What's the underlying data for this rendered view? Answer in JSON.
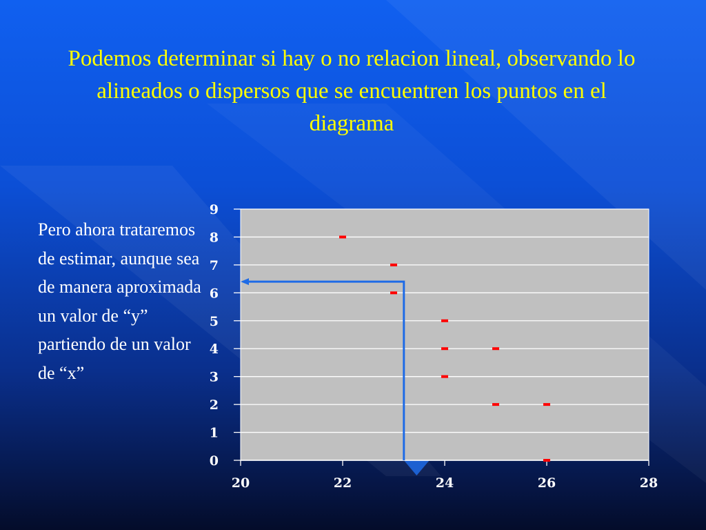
{
  "slide": {
    "title": "Podemos determinar si hay o no relacion lineal, observando lo alineados o dispersos que se encuentren los puntos en el diagrama",
    "body": "Pero ahora trataremos de estimar, aunque sea de manera aproximada un valor de “y” partiendo de un valor de “x”"
  },
  "colors": {
    "title": "#ffff00",
    "body": "#ffffff",
    "plot_background": "#c0c0c0",
    "gridline": "#ffffff",
    "marker": "#ff0000",
    "guide_arrow": "#1e6be6"
  },
  "chart_data": {
    "type": "scatter",
    "x": [
      22,
      23,
      23,
      24,
      24,
      24,
      25,
      25,
      26,
      26
    ],
    "y": [
      8,
      7,
      6,
      5,
      4,
      3,
      4,
      2,
      2,
      0
    ],
    "xlim": [
      20,
      28
    ],
    "ylim": [
      0,
      9
    ],
    "x_ticks": [
      20,
      22,
      24,
      26,
      28
    ],
    "y_ticks": [
      0,
      1,
      2,
      3,
      4,
      5,
      6,
      7,
      8,
      9
    ],
    "grid": "horizontal",
    "legend": "none",
    "marker": "dash",
    "annotation": {
      "type": "estimation-arrow",
      "x_value": 23.2,
      "y_value": 6.4
    }
  }
}
